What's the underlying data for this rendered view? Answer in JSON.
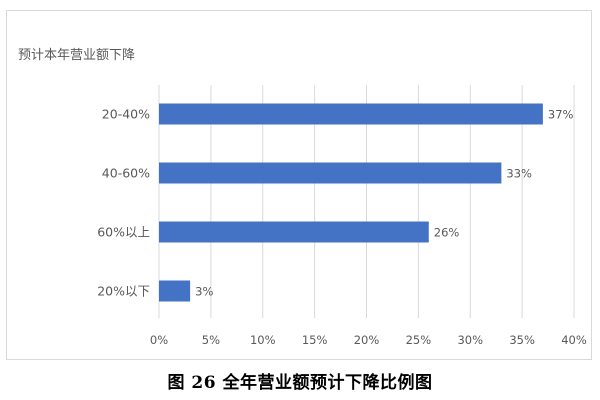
{
  "caption": "图 26 全年营业额预计下降比例图",
  "chart_data": {
    "type": "bar",
    "orientation": "horizontal",
    "title": "预计本年营业额下降",
    "categories": [
      "20-40%",
      "40-60%",
      "60%以上",
      "20%以下"
    ],
    "values": [
      37,
      33,
      26,
      3
    ],
    "data_labels": [
      "37%",
      "33%",
      "26%",
      "3%"
    ],
    "x_ticks": [
      "0%",
      "5%",
      "10%",
      "15%",
      "20%",
      "25%",
      "30%",
      "35%",
      "40%"
    ],
    "xlim": [
      0,
      40
    ],
    "unit": "%",
    "grid": true,
    "legend": "none",
    "colors": {
      "bar": "#4472c4",
      "grid": "#d9d9d9",
      "text": "#595959"
    }
  }
}
